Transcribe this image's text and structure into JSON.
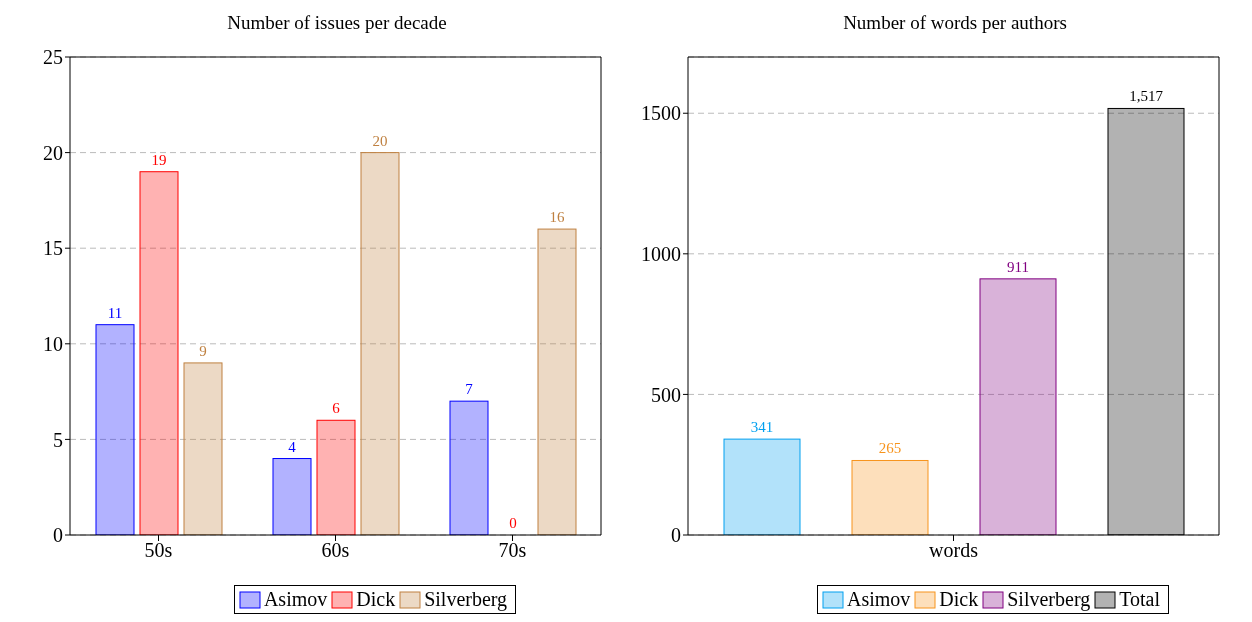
{
  "chart_data": [
    {
      "type": "bar",
      "title": "Number of issues per decade",
      "categories": [
        "50s",
        "60s",
        "70s"
      ],
      "series": [
        {
          "name": "Asimov",
          "color": "#0000ff",
          "values": [
            11,
            4,
            7
          ]
        },
        {
          "name": "Dick",
          "color": "#ff0000",
          "values": [
            19,
            6,
            0
          ]
        },
        {
          "name": "Silverberg",
          "color": "#bf8040",
          "values": [
            9,
            20,
            16
          ]
        }
      ],
      "ylim": [
        0,
        25
      ],
      "yticks": [
        0,
        5,
        10,
        15,
        20,
        25
      ],
      "grid": "y",
      "legend": "bottom",
      "data_labels": true
    },
    {
      "type": "bar",
      "title": "Number of words per authors",
      "categories": [
        "words"
      ],
      "series": [
        {
          "name": "Asimov",
          "color": "#00a0f0",
          "values": [
            341
          ],
          "value_labels": [
            "341"
          ]
        },
        {
          "name": "Dick",
          "color": "#f7941d",
          "values": [
            265
          ],
          "value_labels": [
            "265"
          ]
        },
        {
          "name": "Silverberg",
          "color": "#800080",
          "values": [
            911
          ],
          "value_labels": [
            "911"
          ]
        },
        {
          "name": "Total",
          "color": "#000000",
          "values": [
            1517
          ],
          "value_labels": [
            "1,517"
          ]
        }
      ],
      "ylim": [
        0,
        1700
      ],
      "yticks": [
        0,
        500,
        1000,
        1500
      ],
      "grid": "y",
      "legend": "bottom"
    }
  ]
}
